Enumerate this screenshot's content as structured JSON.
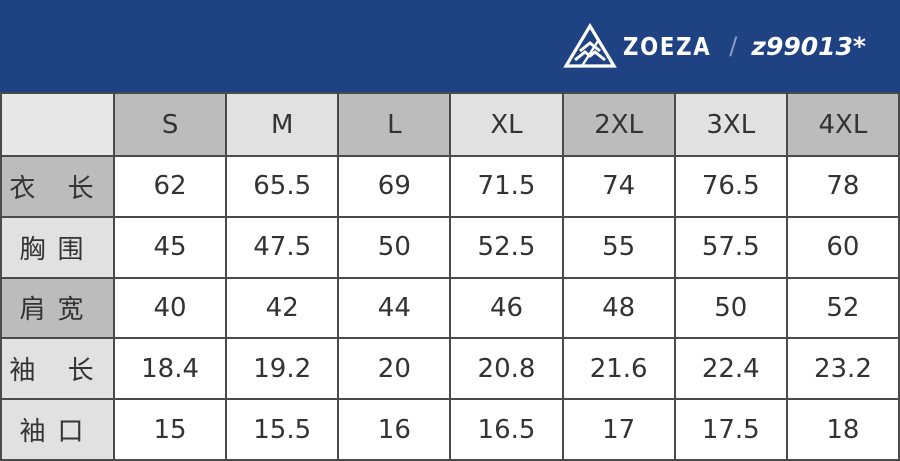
{
  "brand": {
    "name": "ZOEZA",
    "separator": "/",
    "model": "z99013*"
  },
  "table": {
    "sizes": [
      "S",
      "M",
      "L",
      "XL",
      "2XL",
      "3XL",
      "4XL"
    ],
    "rows": [
      {
        "label": "衣 长",
        "values": [
          "62",
          "65.5",
          "69",
          "71.5",
          "74",
          "76.5",
          "78"
        ]
      },
      {
        "label": "胸围",
        "values": [
          "45",
          "47.5",
          "50",
          "52.5",
          "55",
          "57.5",
          "60"
        ]
      },
      {
        "label": "肩宽",
        "values": [
          "40",
          "42",
          "44",
          "46",
          "48",
          "50",
          "52"
        ]
      },
      {
        "label": "袖 长",
        "values": [
          "18.4",
          "19.2",
          "20",
          "20.8",
          "21.6",
          "22.4",
          "23.2"
        ]
      },
      {
        "label": "袖口",
        "values": [
          "15",
          "15.5",
          "16",
          "16.5",
          "17",
          "17.5",
          "18"
        ]
      }
    ]
  },
  "colors": {
    "header_bg": "#1f4283",
    "cell_dark": "#bcbcbc",
    "cell_light": "#e1e1e1"
  }
}
